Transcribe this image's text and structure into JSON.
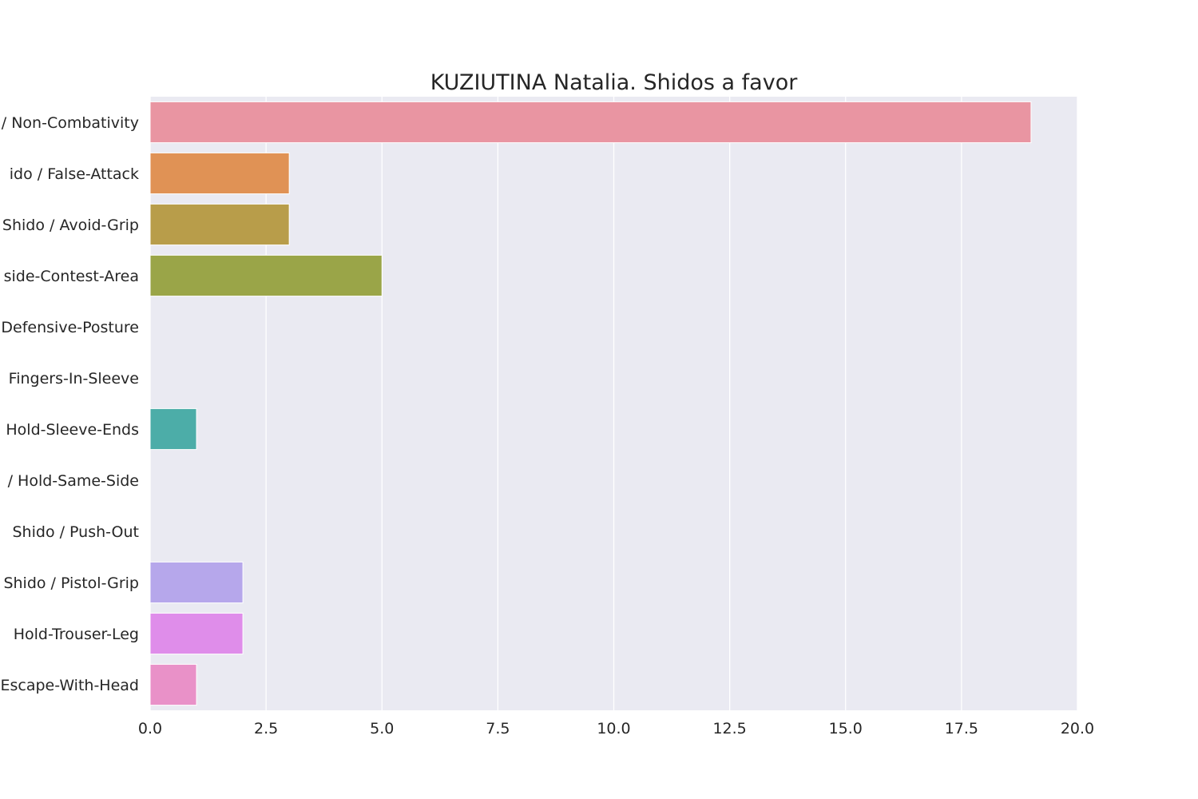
{
  "chart_data": {
    "type": "bar",
    "orientation": "horizontal",
    "title": "KUZIUTINA Natalia. Shidos a favor",
    "xlabel": "",
    "ylabel": "",
    "xlim": [
      0,
      20
    ],
    "x_ticks": [
      "0.0",
      "2.5",
      "5.0",
      "7.5",
      "10.0",
      "12.5",
      "15.0",
      "17.5",
      "20.0"
    ],
    "x_tick_values": [
      0,
      2.5,
      5,
      7.5,
      10,
      12.5,
      15,
      17.5,
      20
    ],
    "categories": [
      "/ Non-Combativity",
      "ido / False-Attack",
      "Shido / Avoid-Grip",
      "side-Contest-Area",
      "Defensive-Posture",
      "Fingers-In-Sleeve",
      "Hold-Sleeve-Ends",
      "/ Hold-Same-Side",
      "Shido / Push-Out",
      "Shido / Pistol-Grip",
      "Hold-Trouser-Leg",
      "Escape-With-Head"
    ],
    "values": [
      19,
      3,
      3,
      5,
      0,
      0,
      1,
      0,
      0,
      2,
      2,
      1
    ],
    "colors": [
      "#e995a2",
      "#e09255",
      "#b89d4a",
      "#9aa548",
      "#6fb04f",
      "#52ad8b",
      "#4cada8",
      "#4faab9",
      "#86a7d6",
      "#b6a7eb",
      "#df8dea",
      "#e991c8"
    ],
    "grid": true,
    "plot_background": "#eaeaf2"
  }
}
